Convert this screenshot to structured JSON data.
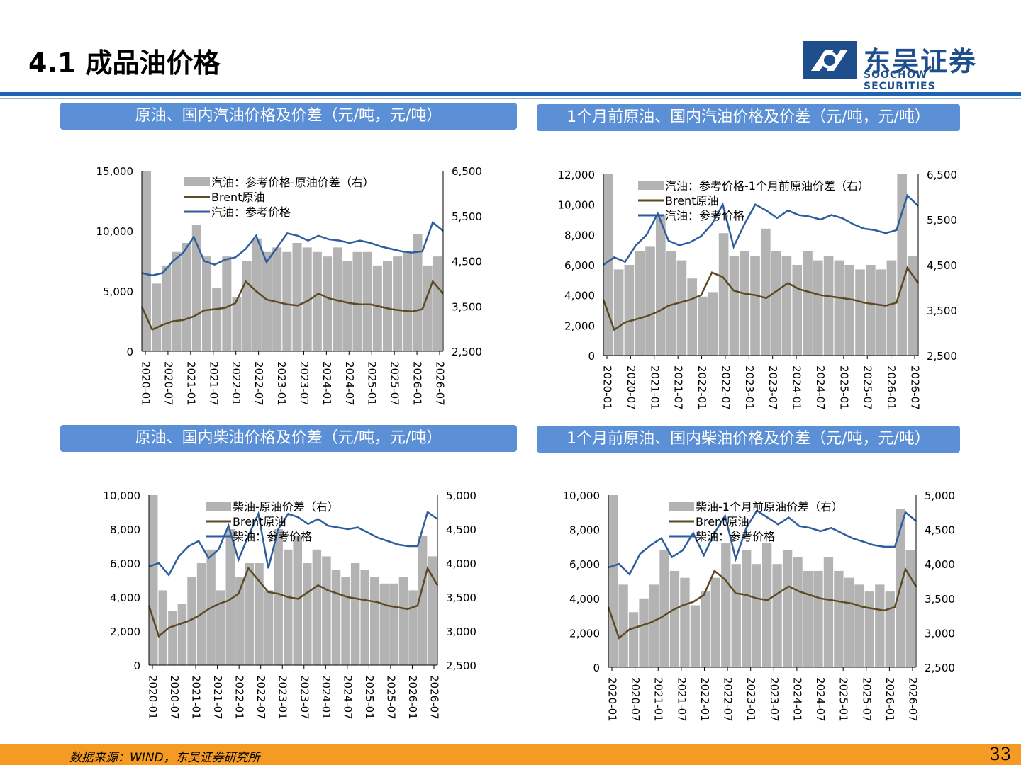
{
  "header": {
    "title": "4.1 成品油价格",
    "logo_cn": "东吴证券",
    "logo_en": "SOOCHOW SECURITIES"
  },
  "colors": {
    "accent_blue": "#1f63b5",
    "panel_blue": "#5b8fd6",
    "gasoline_line": "#2e5d9e",
    "brent_line": "#5c4a25",
    "spread_area": "#b3b3b3",
    "footer_orange": "#f59a23"
  },
  "panels": [
    {
      "title": "原油、国内汽油价格及价差（元/吨，元/吨）",
      "legend": [
        "汽油：参考价格-原油价差（右）",
        "Brent原油",
        "汽油：参考价格"
      ],
      "left_ticks": [
        "15,000",
        "10,000",
        "5,000",
        "0"
      ],
      "right_ticks": [
        "6,500",
        "5,500",
        "4,500",
        "3,500",
        "2,500"
      ]
    },
    {
      "title": "1个月前原油、国内汽油价格及价差（元/吨，元/吨）",
      "legend": [
        "汽油：参考价格-1个月前原油价差（右）",
        "Brent原油",
        "汽油：参考价格"
      ],
      "left_ticks": [
        "12,000",
        "10,000",
        "8,000",
        "6,000",
        "4,000",
        "2,000",
        "0"
      ],
      "right_ticks": [
        "6,500",
        "5,500",
        "4,500",
        "3,500",
        "2,500"
      ]
    },
    {
      "title": "原油、国内柴油价格及价差（元/吨，元/吨）",
      "legend": [
        "柴油-原油价差（右）",
        "Brent原油",
        "柴油：参考价格"
      ],
      "left_ticks": [
        "10,000",
        "8,000",
        "6,000",
        "4,000",
        "2,000",
        "0"
      ],
      "right_ticks": [
        "5,000",
        "4,500",
        "4,000",
        "3,500",
        "3,000",
        "2,500"
      ]
    },
    {
      "title": "1个月前原油、国内柴油价格及价差（元/吨，元/吨）",
      "legend": [
        "柴油-1个月前原油价差（右）",
        "Brent原油",
        "柴油：参考价格"
      ],
      "left_ticks": [
        "10,000",
        "8,000",
        "6,000",
        "4,000",
        "2,000",
        "0"
      ],
      "right_ticks": [
        "5,000",
        "4,500",
        "4,000",
        "3,500",
        "3,000",
        "2,500"
      ]
    }
  ],
  "chart_data": [
    {
      "type": "line",
      "x_ticks": [
        "2020-01",
        "2020-07",
        "2021-01",
        "2021-07",
        "2022-01",
        "2022-07",
        "2023-01",
        "2023-07",
        "2024-01",
        "2024-07",
        "2025-01",
        "2025-07",
        "2026-01",
        "2026-07"
      ],
      "ylim_left": [
        0,
        15000
      ],
      "ylim_right": [
        2500,
        6500
      ],
      "series": [
        {
          "name": "汽油：参考价格-原油价差（右）",
          "axis": "right",
          "style": "area",
          "values": [
            6500,
            4000,
            4400,
            4700,
            4900,
            5300,
            4600,
            3900,
            4600,
            3700,
            4500,
            5000,
            4700,
            4800,
            4700,
            4900,
            4800,
            4700,
            4600,
            4800,
            4500,
            4700,
            4700,
            4400,
            4500,
            4600,
            4700,
            5100,
            4400,
            4600
          ]
        },
        {
          "name": "Brent原油",
          "axis": "left",
          "values": [
            3700,
            1800,
            2200,
            2500,
            2600,
            2900,
            3400,
            3500,
            3600,
            4000,
            5800,
            5000,
            4300,
            4100,
            3900,
            3800,
            4200,
            4800,
            4400,
            4200,
            4000,
            3900,
            3900,
            3700,
            3500,
            3400,
            3300,
            3500,
            5800,
            4800
          ]
        },
        {
          "name": "汽油：参考价格",
          "axis": "left",
          "values": [
            6500,
            6300,
            6500,
            7500,
            8200,
            9500,
            7500,
            7200,
            7600,
            7800,
            8500,
            9600,
            7400,
            8600,
            9800,
            9600,
            9200,
            9600,
            9300,
            9200,
            9000,
            9200,
            9000,
            8700,
            8500,
            8300,
            8200,
            8300,
            10700,
            10000
          ]
        }
      ]
    },
    {
      "type": "line",
      "x_ticks": [
        "2020-01",
        "2020-07",
        "2021-01",
        "2021-07",
        "2022-01",
        "2022-07",
        "2023-01",
        "2023-07",
        "2024-01",
        "2024-07",
        "2025-01",
        "2025-07",
        "2026-01",
        "2026-07"
      ],
      "ylim_left": [
        0,
        12000
      ],
      "ylim_right": [
        2500,
        6500
      ],
      "series": [
        {
          "name": "汽油：参考价格-1个月前原油价差（右）",
          "axis": "right",
          "style": "area",
          "values": [
            6500,
            4400,
            4500,
            4800,
            4900,
            5600,
            4800,
            4600,
            4200,
            3800,
            3900,
            5200,
            4700,
            4800,
            4700,
            5300,
            4800,
            4700,
            4500,
            4800,
            4600,
            4700,
            4600,
            4500,
            4400,
            4500,
            4400,
            4600,
            6500,
            4700
          ]
        },
        {
          "name": "Brent原油",
          "axis": "left",
          "values": [
            3700,
            1700,
            2200,
            2400,
            2600,
            2900,
            3300,
            3500,
            3700,
            4000,
            5500,
            5200,
            4300,
            4100,
            4000,
            3800,
            4300,
            4800,
            4400,
            4200,
            4000,
            3900,
            3800,
            3700,
            3500,
            3400,
            3300,
            3500,
            5800,
            4800
          ]
        },
        {
          "name": "汽油：参考价格",
          "axis": "left",
          "values": [
            6000,
            6500,
            6200,
            7300,
            8000,
            9400,
            7600,
            7300,
            7500,
            7900,
            8700,
            10000,
            7200,
            8700,
            10000,
            9600,
            9100,
            9600,
            9300,
            9200,
            9000,
            9300,
            9100,
            8700,
            8400,
            8300,
            8100,
            8300,
            10600,
            9900
          ]
        }
      ]
    },
    {
      "type": "line",
      "x_ticks": [
        "2020-01",
        "2020-07",
        "2021-01",
        "2021-07",
        "2022-01",
        "2022-07",
        "2023-01",
        "2023-07",
        "2024-01",
        "2024-07",
        "2025-01",
        "2025-07",
        "2026-01",
        "2026-07"
      ],
      "ylim_left": [
        0,
        10000
      ],
      "ylim_right": [
        2500,
        5000
      ],
      "series": [
        {
          "name": "柴油-原油价差（右）",
          "axis": "right",
          "style": "area",
          "values": [
            5000,
            3600,
            3300,
            3400,
            3800,
            4000,
            4200,
            3600,
            4500,
            3800,
            4000,
            4000,
            3600,
            4500,
            4200,
            4400,
            4000,
            4200,
            4100,
            3900,
            3800,
            4000,
            3900,
            3800,
            3700,
            3700,
            3800,
            3600,
            4400,
            4100
          ]
        },
        {
          "name": "Brent原油",
          "axis": "left",
          "values": [
            3500,
            1700,
            2200,
            2400,
            2600,
            2900,
            3300,
            3600,
            3800,
            4200,
            5700,
            5000,
            4300,
            4200,
            4000,
            3900,
            4300,
            4700,
            4400,
            4200,
            4000,
            3900,
            3800,
            3700,
            3500,
            3400,
            3300,
            3500,
            5700,
            4700
          ]
        },
        {
          "name": "柴油：参考价格",
          "axis": "left",
          "values": [
            5800,
            6000,
            5300,
            6400,
            7000,
            7300,
            6300,
            6800,
            8200,
            6200,
            7600,
            8900,
            5700,
            8000,
            8900,
            8700,
            8300,
            8600,
            8200,
            8100,
            8000,
            8100,
            7800,
            7500,
            7300,
            7100,
            7000,
            7000,
            9000,
            8600
          ]
        }
      ]
    },
    {
      "type": "line",
      "x_ticks": [
        "2020-01",
        "2020-07",
        "2021-01",
        "2021-07",
        "2022-01",
        "2022-07",
        "2023-01",
        "2023-07",
        "2024-01",
        "2024-07",
        "2025-01",
        "2025-07",
        "2026-01",
        "2026-07"
      ],
      "ylim_left": [
        0,
        10000
      ],
      "ylim_right": [
        2500,
        5000
      ],
      "series": [
        {
          "name": "柴油-1个月前原油价差（右）",
          "axis": "right",
          "style": "area",
          "values": [
            5000,
            3700,
            3300,
            3500,
            3700,
            4200,
            3900,
            3800,
            3400,
            3600,
            3800,
            4300,
            4000,
            4200,
            4000,
            4300,
            4000,
            4200,
            4100,
            3900,
            3900,
            4100,
            3900,
            3800,
            3700,
            3600,
            3700,
            3600,
            4800,
            4200
          ]
        },
        {
          "name": "Brent原油",
          "axis": "left",
          "values": [
            3500,
            1700,
            2200,
            2400,
            2600,
            2900,
            3300,
            3600,
            3800,
            4200,
            5600,
            5100,
            4300,
            4200,
            4000,
            3900,
            4300,
            4700,
            4400,
            4200,
            4000,
            3900,
            3800,
            3700,
            3500,
            3400,
            3300,
            3500,
            5700,
            4700
          ]
        },
        {
          "name": "柴油：参考价格",
          "axis": "left",
          "values": [
            5800,
            6000,
            5400,
            6600,
            7100,
            7500,
            6400,
            6800,
            7800,
            6500,
            7800,
            8800,
            6300,
            8100,
            9100,
            8700,
            8300,
            8700,
            8200,
            8100,
            7900,
            8100,
            7800,
            7500,
            7300,
            7100,
            7000,
            7000,
            9000,
            8500
          ]
        }
      ]
    }
  ],
  "footer": {
    "source": "数据来源：WIND，东吴证券研究所",
    "page": "33"
  }
}
